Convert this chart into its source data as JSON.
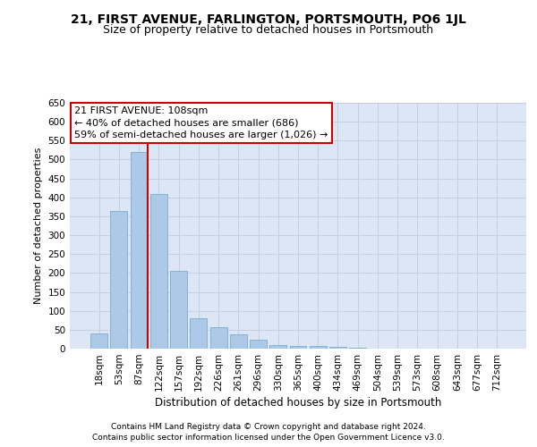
{
  "title": "21, FIRST AVENUE, FARLINGTON, PORTSMOUTH, PO6 1JL",
  "subtitle": "Size of property relative to detached houses in Portsmouth",
  "xlabel": "Distribution of detached houses by size in Portsmouth",
  "ylabel": "Number of detached properties",
  "categories": [
    "18sqm",
    "53sqm",
    "87sqm",
    "122sqm",
    "157sqm",
    "192sqm",
    "226sqm",
    "261sqm",
    "296sqm",
    "330sqm",
    "365sqm",
    "400sqm",
    "434sqm",
    "469sqm",
    "504sqm",
    "539sqm",
    "573sqm",
    "608sqm",
    "643sqm",
    "677sqm",
    "712sqm"
  ],
  "values": [
    40,
    365,
    520,
    410,
    205,
    80,
    57,
    37,
    23,
    10,
    8,
    8,
    5,
    2,
    1,
    1,
    1,
    1,
    1,
    0,
    1
  ],
  "bar_color": "#adc9e8",
  "bar_edge_color": "#7aabcf",
  "annotation_text_line1": "21 FIRST AVENUE: 108sqm",
  "annotation_text_line2": "← 40% of detached houses are smaller (686)",
  "annotation_text_line3": "59% of semi-detached houses are larger (1,026) →",
  "annotation_box_color": "#ffffff",
  "annotation_border_color": "#cc0000",
  "vline_color": "#cc0000",
  "vline_x_index": 2,
  "ylim": [
    0,
    650
  ],
  "yticks": [
    0,
    50,
    100,
    150,
    200,
    250,
    300,
    350,
    400,
    450,
    500,
    550,
    600,
    650
  ],
  "grid_color": "#c5cfe0",
  "background_color": "#dce6f5",
  "footnote1": "Contains HM Land Registry data © Crown copyright and database right 2024.",
  "footnote2": "Contains public sector information licensed under the Open Government Licence v3.0.",
  "title_fontsize": 10,
  "subtitle_fontsize": 9,
  "xlabel_fontsize": 8.5,
  "ylabel_fontsize": 8,
  "tick_fontsize": 7.5,
  "annotation_fontsize": 8,
  "footnote_fontsize": 6.5
}
